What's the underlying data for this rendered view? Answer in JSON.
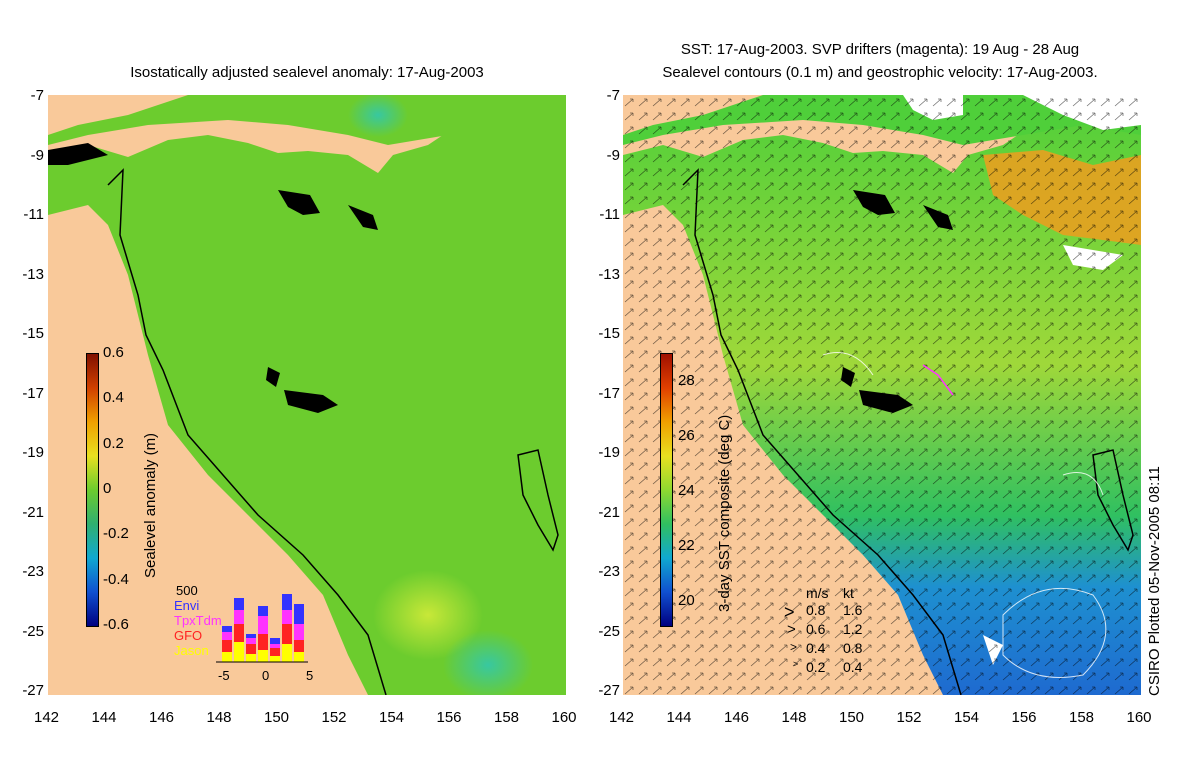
{
  "left": {
    "title": "Isostatically adjusted sealevel anomaly: 17-Aug-2003",
    "colorbar": {
      "title": "Sealevel anomaly (m)",
      "ticks": [
        "0.6",
        "0.4",
        "0.2",
        "0",
        "-0.2",
        "-0.4",
        "-0.6"
      ]
    },
    "histogram": {
      "max_label": "500",
      "x_ticks": [
        "-5",
        "0",
        "5"
      ],
      "missions": [
        {
          "name": "Envi",
          "color": "#3333ff"
        },
        {
          "name": "TpxTdm",
          "color": "#ff33ff"
        },
        {
          "name": "GFO",
          "color": "#ff2222"
        },
        {
          "name": "Jason",
          "color": "#ffff00"
        }
      ]
    }
  },
  "right": {
    "title_line1": "SST: 17-Aug-2003. SVP drifters (magenta): 19 Aug - 28 Aug",
    "title_line2": "Sealevel contours (0.1 m) and geostrophic velocity: 17-Aug-2003.",
    "colorbar": {
      "title": "3-day SST composite (deg C)",
      "ticks": [
        "28",
        "26",
        "24",
        "22",
        "20"
      ]
    },
    "legend": {
      "header_ms": "m/s",
      "header_kt": "kt",
      "rows": [
        {
          "ms": "0.8",
          "kt": "1.6"
        },
        {
          "ms": "0.6",
          "kt": "1.2"
        },
        {
          "ms": "0.4",
          "kt": "0.8"
        },
        {
          "ms": "0.2",
          "kt": "0.4"
        }
      ]
    },
    "credit": "CSIRO Plotted 05-Nov-2005 08:11"
  },
  "axes": {
    "lat_ticks": [
      "-7",
      "-9",
      "-11",
      "-13",
      "-15",
      "-17",
      "-19",
      "-21",
      "-23",
      "-25",
      "-27"
    ],
    "lon_ticks": [
      "142",
      "144",
      "146",
      "148",
      "150",
      "152",
      "154",
      "156",
      "158",
      "160"
    ]
  },
  "colors": {
    "land": "#f9c99a",
    "ocean_left": "#6ccc2e",
    "ocean_right": "#4fcf3a",
    "warm_patch": "#e8a020",
    "cool_patch": "#1e7cd0"
  }
}
